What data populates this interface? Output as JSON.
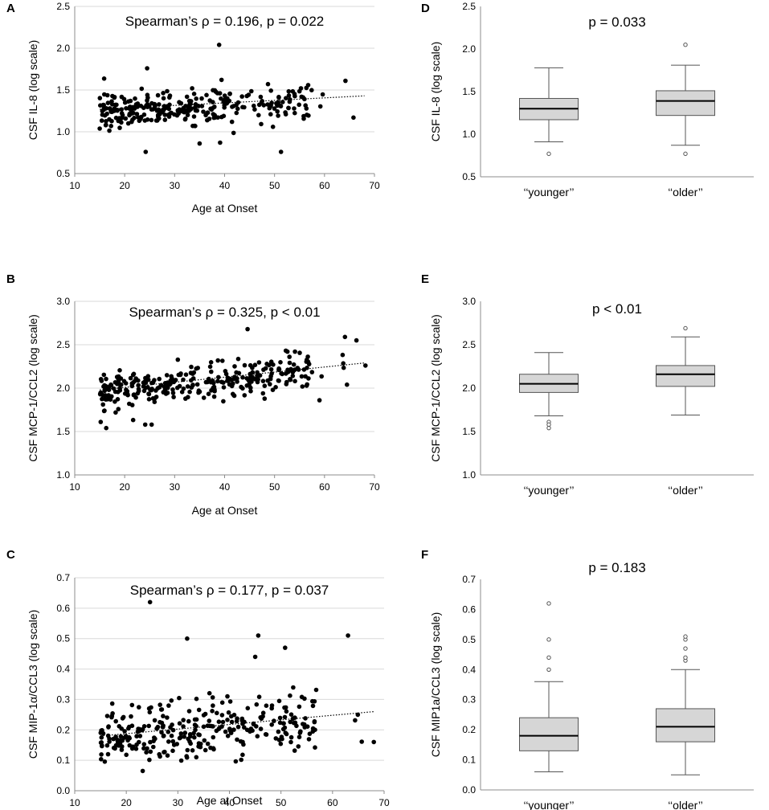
{
  "chart_data": [
    {
      "id": "A",
      "type": "scatter",
      "letter": "A",
      "title": "Spearman’s ρ = 0.196, p = 0.022",
      "xlabel": "Age at Onset",
      "ylabel": "CSF IL-8 (log scale)",
      "xlim": [
        10,
        70
      ],
      "ylim": [
        0.5,
        2.5
      ],
      "xticks": [
        "10",
        "20",
        "30",
        "40",
        "50",
        "60",
        "70"
      ],
      "yticks": [
        "0.5",
        "1.0",
        "1.5",
        "2.0",
        "2.5"
      ],
      "trend": {
        "x": [
          15,
          68
        ],
        "y": [
          1.27,
          1.43
        ]
      },
      "base": 1.3,
      "slope": 0.003,
      "noise": 0.17,
      "n": 300,
      "seed": 11,
      "points": [
        [
          38.9,
          2.04
        ],
        [
          24.5,
          1.76
        ],
        [
          64.2,
          1.61
        ],
        [
          65.8,
          1.17
        ],
        [
          51.3,
          0.76
        ],
        [
          24.2,
          0.76
        ],
        [
          35.0,
          0.86
        ],
        [
          39.1,
          0.87
        ]
      ]
    },
    {
      "id": "B",
      "type": "scatter",
      "letter": "B",
      "title": "Spearman’s ρ = 0.325, p < 0.01",
      "xlabel": "Age at Onset",
      "ylabel": "CSF MCP-1/CCL2 (log scale)",
      "xlim": [
        10,
        70
      ],
      "ylim": [
        1.0,
        3.0
      ],
      "xticks": [
        "10",
        "20",
        "30",
        "40",
        "50",
        "60",
        "70"
      ],
      "yticks": [
        "1.0",
        "1.5",
        "2.0",
        "2.5",
        "3.0"
      ],
      "trend": {
        "x": [
          15,
          68
        ],
        "y": [
          1.98,
          2.29
        ]
      },
      "base": 2.07,
      "slope": 0.0058,
      "noise": 0.16,
      "n": 300,
      "seed": 23,
      "points": [
        [
          44.6,
          2.68
        ],
        [
          64.1,
          2.59
        ],
        [
          66.4,
          2.55
        ],
        [
          68.2,
          2.26
        ],
        [
          15.2,
          1.61
        ],
        [
          16.3,
          1.54
        ],
        [
          24.1,
          1.58
        ],
        [
          25.4,
          1.58
        ],
        [
          59.0,
          1.86
        ],
        [
          64.5,
          2.04
        ]
      ]
    },
    {
      "id": "C",
      "type": "scatter",
      "letter": "C",
      "title": "Spearman’s ρ = 0.177, p = 0.037",
      "xlabel": "Age at Onset",
      "ylabel": "CSF MIP-1α/CCL3 (log scale)",
      "xlim": [
        10,
        70
      ],
      "ylim": [
        0.0,
        0.7
      ],
      "xticks": [
        "10",
        "20",
        "30",
        "40",
        "50",
        "60",
        "70"
      ],
      "yticks": [
        "0.0",
        "0.1",
        "0.2",
        "0.3",
        "0.4",
        "0.5",
        "0.6",
        "0.7"
      ],
      "trend": {
        "x": [
          15,
          68
        ],
        "y": [
          0.18,
          0.26
        ]
      },
      "base": 0.2,
      "slope": 0.0015,
      "noise": 0.08,
      "n": 300,
      "seed": 37,
      "points": [
        [
          24.6,
          0.62
        ],
        [
          63.0,
          0.51
        ],
        [
          45.6,
          0.51
        ],
        [
          50.8,
          0.47
        ],
        [
          31.8,
          0.5
        ],
        [
          45.0,
          0.44
        ],
        [
          68.0,
          0.16
        ],
        [
          64.9,
          0.25
        ]
      ]
    },
    {
      "id": "D",
      "type": "box",
      "letter": "D",
      "title": "p = 0.033",
      "ylabel": "CSF IL-8 (log scale)",
      "ylim": [
        0.5,
        2.5
      ],
      "yticks": [
        "0.5",
        "1.0",
        "1.5",
        "2.0",
        "2.5"
      ],
      "boxes": [
        {
          "label": "‘‘younger’’",
          "whisker_low": 0.91,
          "q1": 1.17,
          "median": 1.3,
          "q3": 1.42,
          "whisker_high": 1.78,
          "outliers": [
            0.77
          ]
        },
        {
          "label": "‘‘older’’",
          "whisker_low": 0.87,
          "q1": 1.22,
          "median": 1.39,
          "q3": 1.51,
          "whisker_high": 1.81,
          "outliers": [
            0.77,
            2.05
          ]
        }
      ]
    },
    {
      "id": "E",
      "type": "box",
      "letter": "E",
      "title": "p < 0.01",
      "ylabel": "CSF MCP-1/CCL2 (log scale)",
      "ylim": [
        1.0,
        3.0
      ],
      "yticks": [
        "1.0",
        "1.5",
        "2.0",
        "2.5",
        "3.0"
      ],
      "boxes": [
        {
          "label": "‘‘younger’’",
          "whisker_low": 1.68,
          "q1": 1.95,
          "median": 2.05,
          "q3": 2.16,
          "whisker_high": 2.41,
          "outliers": [
            1.61,
            1.58,
            1.54
          ]
        },
        {
          "label": "‘‘older’’",
          "whisker_low": 1.69,
          "q1": 2.02,
          "median": 2.16,
          "q3": 2.26,
          "whisker_high": 2.59,
          "outliers": [
            2.69
          ]
        }
      ]
    },
    {
      "id": "F",
      "type": "box",
      "letter": "F",
      "title": "p = 0.183",
      "ylabel": "CSF MIP1a/CCL3 (log scale)",
      "ylim": [
        0.0,
        0.7
      ],
      "yticks": [
        "0.0",
        "0.1",
        "0.2",
        "0.3",
        "0.4",
        "0.5",
        "0.6",
        "0.7"
      ],
      "boxes": [
        {
          "label": "‘‘younger’’",
          "whisker_low": 0.06,
          "q1": 0.13,
          "median": 0.18,
          "q3": 0.24,
          "whisker_high": 0.36,
          "outliers": [
            0.4,
            0.44,
            0.5,
            0.62
          ]
        },
        {
          "label": "‘‘older’’",
          "whisker_low": 0.05,
          "q1": 0.16,
          "median": 0.21,
          "q3": 0.27,
          "whisker_high": 0.4,
          "outliers": [
            0.43,
            0.44,
            0.47,
            0.5,
            0.51
          ]
        }
      ]
    }
  ]
}
